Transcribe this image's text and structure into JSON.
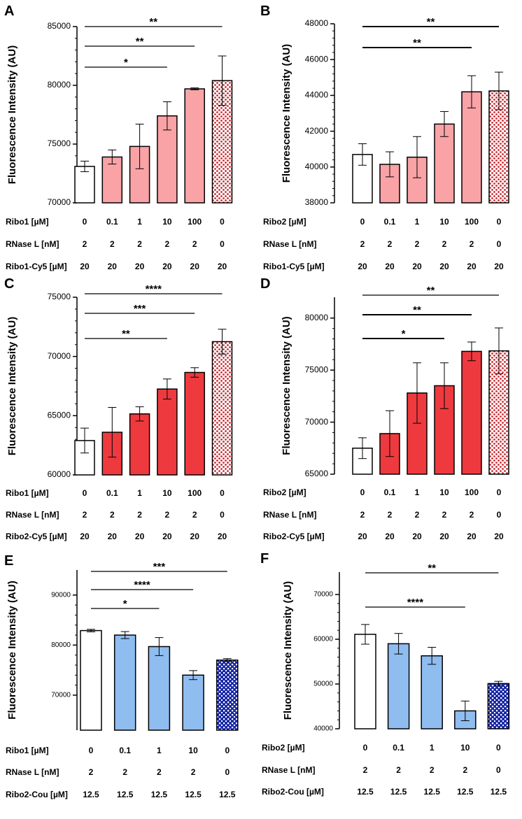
{
  "figure": {
    "ylabel": "Fluorescence Intensity (AU)",
    "colors": {
      "open": "#ffffff",
      "light_pink": "#f9a3a7",
      "red": "#ee3a3f",
      "light_blue": "#90bdf0",
      "dark_red_pattern": "#c42a31",
      "dark_blue_pattern": "#1c2ba6",
      "outline": "#000000"
    }
  },
  "chart_data": [
    {
      "panel": "A",
      "type": "bar",
      "ylim": [
        70000,
        85000
      ],
      "yticks": [
        70000,
        75000,
        80000,
        85000
      ],
      "yticklabels": [
        "70000",
        "75000",
        "80000",
        "85000"
      ],
      "values": [
        73100,
        73900,
        74800,
        77400,
        79700,
        80400
      ],
      "errors": [
        450,
        600,
        1900,
        1200,
        80,
        2100
      ],
      "fills": [
        "open",
        "light_pink",
        "light_pink",
        "light_pink",
        "light_pink",
        "pattern_red"
      ],
      "significance": [
        {
          "to_index": 3,
          "label": "*"
        },
        {
          "to_index": 4,
          "label": "**"
        },
        {
          "to_index": 5,
          "label": "**"
        }
      ],
      "rows": [
        {
          "label": "Ribo1 [µM]",
          "values": [
            "0",
            "0.1",
            "1",
            "10",
            "100",
            "0"
          ]
        },
        {
          "label": "RNase L [nM]",
          "values": [
            "2",
            "2",
            "2",
            "2",
            "2",
            "0"
          ]
        },
        {
          "label": "Ribo1-Cy5 [µM]",
          "values": [
            "20",
            "20",
            "20",
            "20",
            "20",
            "20"
          ]
        }
      ]
    },
    {
      "panel": "B",
      "type": "bar",
      "ylim": [
        38000,
        48000
      ],
      "yticks": [
        38000,
        40000,
        42000,
        44000,
        46000,
        48000
      ],
      "yticklabels": [
        "38000",
        "40000",
        "42000",
        "44000",
        "46000",
        "48000"
      ],
      "values": [
        40700,
        40150,
        40550,
        42400,
        44200,
        44250
      ],
      "errors": [
        600,
        700,
        1150,
        700,
        900,
        1050
      ],
      "fills": [
        "open",
        "light_pink",
        "light_pink",
        "light_pink",
        "light_pink",
        "pattern_red"
      ],
      "significance": [
        {
          "to_index": 4,
          "label": "**"
        },
        {
          "to_index": 5,
          "label": "**"
        }
      ],
      "rows": [
        {
          "label": "Ribo2 [µM]",
          "values": [
            "0",
            "0.1",
            "1",
            "10",
            "100",
            "0"
          ]
        },
        {
          "label": "RNase L [nM]",
          "values": [
            "2",
            "2",
            "2",
            "2",
            "2",
            "0"
          ]
        },
        {
          "label": "Ribo1-Cy5 [µM]",
          "values": [
            "20",
            "20",
            "20",
            "20",
            "20",
            "20"
          ]
        }
      ]
    },
    {
      "panel": "C",
      "type": "bar",
      "ylim": [
        60000,
        75000
      ],
      "yticks": [
        60000,
        65000,
        70000,
        75000
      ],
      "yticklabels": [
        "60000",
        "65000",
        "70000",
        "75000"
      ],
      "values": [
        62900,
        63600,
        65150,
        67250,
        68650,
        71250
      ],
      "errors": [
        1050,
        2100,
        600,
        850,
        400,
        1050
      ],
      "fills": [
        "open",
        "red",
        "red",
        "red",
        "red",
        "pattern_red"
      ],
      "significance": [
        {
          "to_index": 3,
          "label": "**"
        },
        {
          "to_index": 4,
          "label": "***"
        },
        {
          "to_index": 5,
          "label": "****"
        }
      ],
      "rows": [
        {
          "label": "Ribo1 [µM]",
          "values": [
            "0",
            "0.1",
            "1",
            "10",
            "100",
            "0"
          ]
        },
        {
          "label": "RNase L [nM]",
          "values": [
            "2",
            "2",
            "2",
            "2",
            "2",
            "0"
          ]
        },
        {
          "label": "Ribo2-Cy5 [µM]",
          "values": [
            "20",
            "20",
            "20",
            "20",
            "20",
            "20"
          ]
        }
      ]
    },
    {
      "panel": "D",
      "type": "bar",
      "ylim": [
        65000,
        82000
      ],
      "yticks": [
        65000,
        70000,
        75000,
        80000
      ],
      "yticklabels": [
        "65000",
        "70000",
        "75000",
        "80000"
      ],
      "values": [
        67500,
        68900,
        72800,
        73500,
        76800,
        76850
      ],
      "errors": [
        1000,
        2200,
        2900,
        2200,
        900,
        2200
      ],
      "fills": [
        "open",
        "red",
        "red",
        "red",
        "red",
        "pattern_red"
      ],
      "significance": [
        {
          "to_index": 3,
          "label": "*"
        },
        {
          "to_index": 4,
          "label": "**"
        },
        {
          "to_index": 5,
          "label": "**"
        }
      ],
      "rows": [
        {
          "label": "Ribo2 [µM]",
          "values": [
            "0",
            "0.1",
            "1",
            "10",
            "100",
            "0"
          ]
        },
        {
          "label": "RNase L [nM]",
          "values": [
            "2",
            "2",
            "2",
            "2",
            "2",
            "0"
          ]
        },
        {
          "label": "Ribo2-Cy5 [µM]",
          "values": [
            "20",
            "20",
            "20",
            "20",
            "20",
            "20"
          ]
        }
      ]
    },
    {
      "panel": "E",
      "type": "bar",
      "ylim": [
        63000,
        95000
      ],
      "yticks": [
        70000,
        80000,
        90000
      ],
      "yticklabels": [
        "70000",
        "80000",
        "90000"
      ],
      "values": [
        82900,
        82000,
        79700,
        74000,
        77000
      ],
      "errors": [
        250,
        700,
        1800,
        900,
        300
      ],
      "fills": [
        "open",
        "light_blue",
        "light_blue",
        "light_blue",
        "pattern_blue"
      ],
      "significance": [
        {
          "to_index": 2,
          "label": "*"
        },
        {
          "to_index": 3,
          "label": "****"
        },
        {
          "to_index": 4,
          "label": "***"
        }
      ],
      "rows": [
        {
          "label": "Ribo1 [µM]",
          "values": [
            "0",
            "0.1",
            "1",
            "10",
            "0"
          ]
        },
        {
          "label": "RNase L [nM]",
          "values": [
            "2",
            "2",
            "2",
            "2",
            "0"
          ]
        },
        {
          "label": "Ribo2-Cou [µM]",
          "values": [
            "12.5",
            "12.5",
            "12.5",
            "12.5",
            "12.5"
          ]
        }
      ]
    },
    {
      "panel": "F",
      "type": "bar",
      "ylim": [
        40000,
        75000
      ],
      "yticks": [
        40000,
        50000,
        60000,
        70000
      ],
      "yticklabels": [
        "40000",
        "50000",
        "60000",
        "70000"
      ],
      "values": [
        61100,
        59000,
        56300,
        44000,
        50100
      ],
      "errors": [
        2200,
        2300,
        1900,
        2200,
        500
      ],
      "fills": [
        "open",
        "light_blue",
        "light_blue",
        "light_blue",
        "pattern_blue"
      ],
      "significance": [
        {
          "to_index": 3,
          "label": "****"
        },
        {
          "to_index": 4,
          "label": "**"
        }
      ],
      "rows": [
        {
          "label": "Ribo2 [µM]",
          "values": [
            "0",
            "0.1",
            "1",
            "10",
            "0"
          ]
        },
        {
          "label": "RNase L [nM]",
          "values": [
            "2",
            "2",
            "2",
            "2",
            "0"
          ]
        },
        {
          "label": "Ribo2-Cou [µM]",
          "values": [
            "12.5",
            "12.5",
            "12.5",
            "12.5",
            "12.5"
          ]
        }
      ]
    }
  ]
}
